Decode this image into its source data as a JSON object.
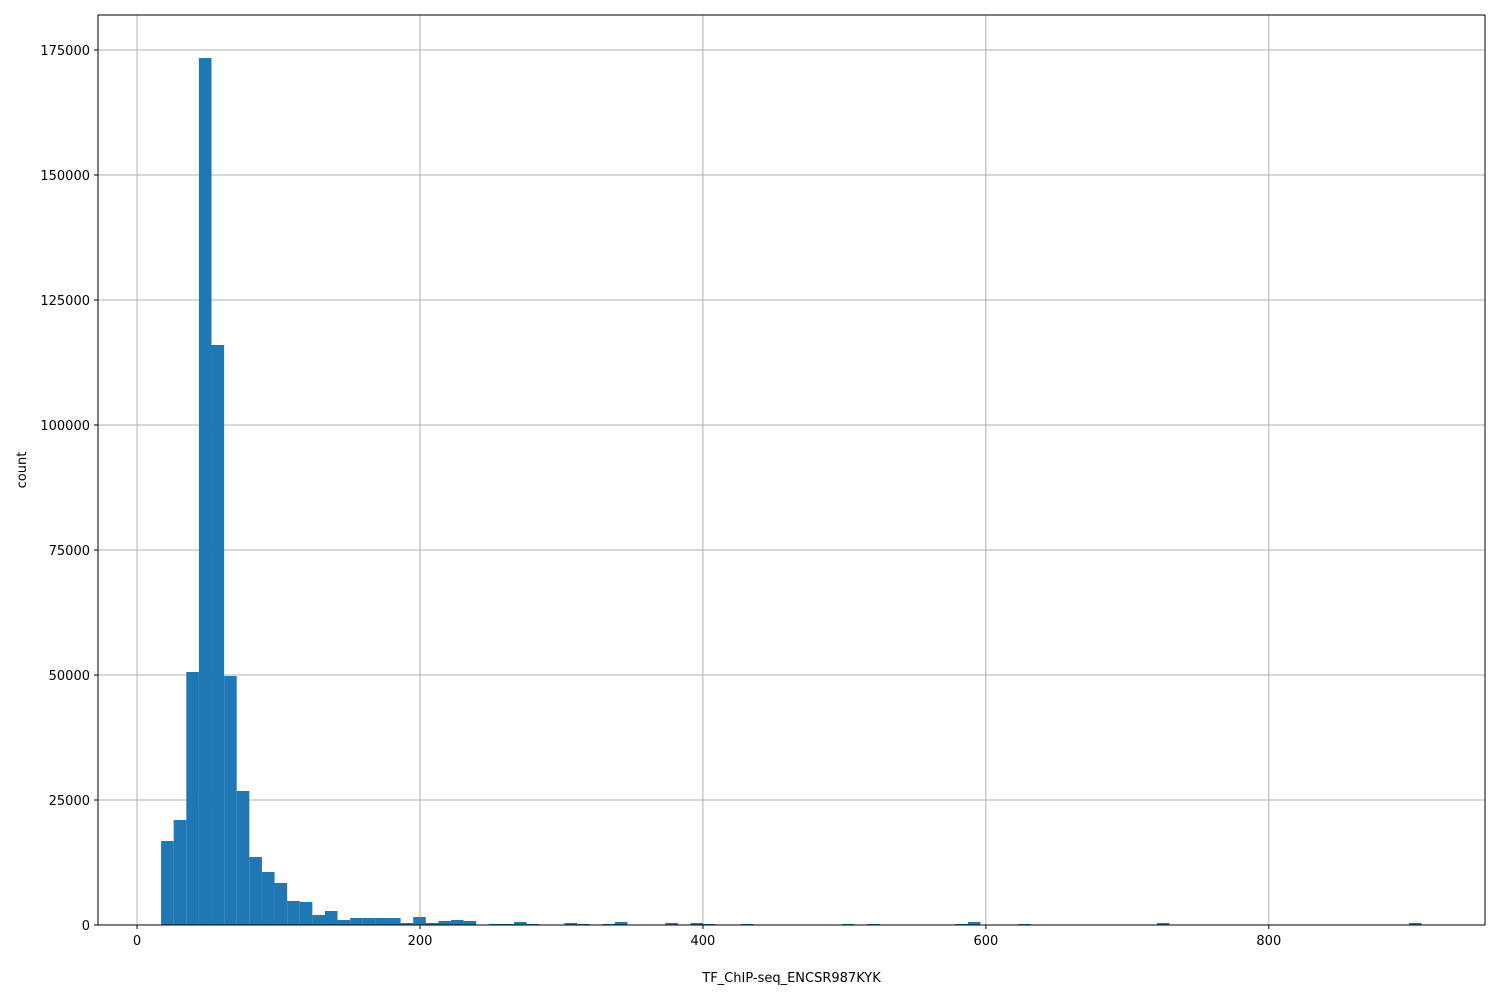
{
  "chart_data": {
    "type": "bar",
    "subtype": "histogram",
    "title": "",
    "xlabel": "TF_ChIP-seq_ENCSR987KYK",
    "ylabel": "count",
    "bin_range": [
      17,
      908
    ],
    "bins": 100,
    "counts": [
      16800,
      21000,
      50600,
      173400,
      116000,
      49800,
      26800,
      13600,
      10600,
      8400,
      4800,
      4600,
      2000,
      2800,
      1000,
      1400,
      1400,
      1400,
      1400,
      400,
      1600,
      400,
      800,
      1000,
      800,
      0,
      200,
      200,
      600,
      200,
      0,
      0,
      400,
      200,
      0,
      200,
      600,
      0,
      0,
      0,
      400,
      0,
      400,
      200,
      0,
      0,
      200,
      0,
      0,
      0,
      0,
      0,
      0,
      0,
      200,
      0,
      200,
      0,
      0,
      0,
      0,
      0,
      0,
      200,
      600,
      0,
      0,
      0,
      200,
      0,
      0,
      0,
      0,
      0,
      0,
      0,
      0,
      0,
      0,
      400,
      0,
      0,
      0,
      0,
      0,
      0,
      0,
      0,
      0,
      0,
      0,
      0,
      0,
      0,
      0,
      0,
      0,
      0,
      0,
      400
    ],
    "xlim": [
      -27.6,
      952.8
    ],
    "ylim": [
      0,
      182000
    ],
    "xticks": [
      "0",
      "200",
      "400",
      "600",
      "800"
    ],
    "xtick_values": [
      0,
      200,
      400,
      600,
      800
    ],
    "yticks": [
      "0",
      "25000",
      "50000",
      "75000",
      "100000",
      "125000",
      "150000",
      "175000"
    ],
    "ytick_values": [
      0,
      25000,
      50000,
      75000,
      100000,
      125000,
      150000,
      175000
    ],
    "grid": true,
    "bar_color": "#1f77b4",
    "grid_color": "#b0b0b0"
  }
}
